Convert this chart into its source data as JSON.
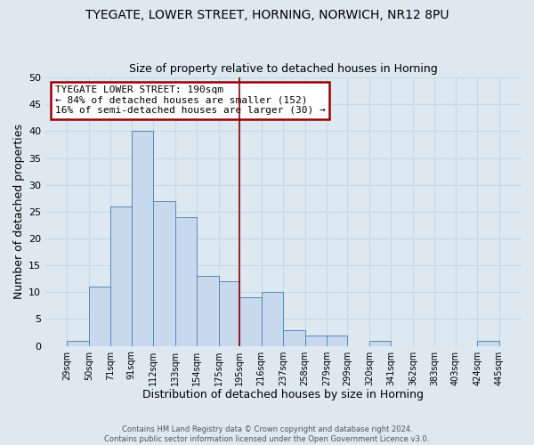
{
  "title": "TYEGATE, LOWER STREET, HORNING, NORWICH, NR12 8PU",
  "subtitle": "Size of property relative to detached houses in Horning",
  "xlabel": "Distribution of detached houses by size in Horning",
  "ylabel": "Number of detached properties",
  "footer_line1": "Contains HM Land Registry data © Crown copyright and database right 2024.",
  "footer_line2": "Contains public sector information licensed under the Open Government Licence v3.0.",
  "bin_edges": [
    29,
    50,
    71,
    91,
    112,
    133,
    154,
    175,
    195,
    216,
    237,
    258,
    279,
    299,
    320,
    341,
    362,
    383,
    403,
    424,
    445
  ],
  "bin_labels": [
    "29sqm",
    "50sqm",
    "71sqm",
    "91sqm",
    "112sqm",
    "133sqm",
    "154sqm",
    "175sqm",
    "195sqm",
    "216sqm",
    "237sqm",
    "258sqm",
    "279sqm",
    "299sqm",
    "320sqm",
    "341sqm",
    "362sqm",
    "383sqm",
    "403sqm",
    "424sqm",
    "445sqm"
  ],
  "counts": [
    1,
    11,
    26,
    40,
    27,
    24,
    13,
    12,
    9,
    10,
    3,
    2,
    2,
    0,
    1,
    0,
    0,
    0,
    0,
    1
  ],
  "bar_facecolor": "#c8d9ed",
  "bar_edgecolor": "#5588bb",
  "grid_color": "#c8d8e8",
  "bg_color": "#dde8f0",
  "vline_x": 195,
  "vline_color": "#8b0000",
  "annotation_title": "TYEGATE LOWER STREET: 190sqm",
  "annotation_line1": "← 84% of detached houses are smaller (152)",
  "annotation_line2": "16% of semi-detached houses are larger (30) →",
  "annotation_box_edgecolor": "#990000",
  "ylim": [
    0,
    50
  ],
  "yticks": [
    0,
    5,
    10,
    15,
    20,
    25,
    30,
    35,
    40,
    45,
    50
  ]
}
